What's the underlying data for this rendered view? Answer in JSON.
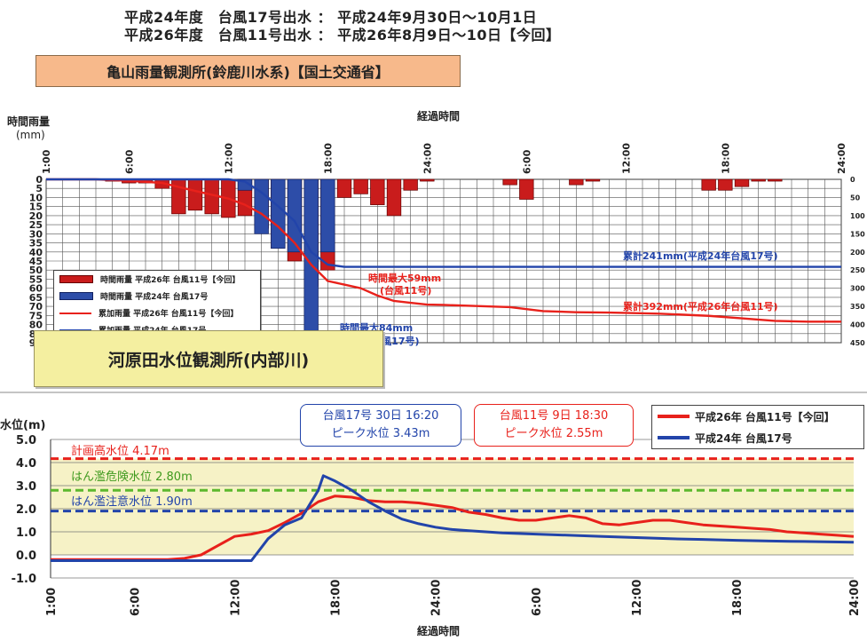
{
  "header": {
    "line1": "平成24年度　台風17号出水 ： 平成24年9月30日～10月1日",
    "line2": "平成26年度　台風11号出水 ： 平成26年8月9日～10日【今回】"
  },
  "station_rain": "亀山雨量観測所(鈴鹿川水系)【国土交通省】",
  "station_level": "河原田水位観測所(内部川)",
  "colors": {
    "red": "#e8211b",
    "darkred": "#d91c1c",
    "blue": "#2244aa",
    "bar_blue": "#2d4da8",
    "band": "#f6f2c6"
  },
  "chart_data": [
    {
      "type": "bar",
      "title": "",
      "xlabel": "経過時間",
      "ylabel": "時間雨量",
      "yunit": "(mm)",
      "ylim": [
        0,
        90
      ],
      "y2lim": [
        0,
        450
      ],
      "x_ticks": [
        "1:00",
        "6:00",
        "12:00",
        "18:00",
        "24:00",
        "6:00",
        "12:00",
        "18:00",
        "24:00"
      ],
      "y_ticks": [
        0,
        5,
        10,
        15,
        20,
        25,
        30,
        35,
        40,
        45,
        50,
        55,
        60,
        65,
        70,
        75,
        80,
        85,
        90
      ],
      "y2_ticks": [
        0,
        50,
        100,
        150,
        200,
        250,
        300,
        350,
        400,
        450
      ],
      "legend": [
        {
          "label": "時間雨量 平成26年 台風11号【今回】",
          "kind": "bar",
          "color": "#c91c1c"
        },
        {
          "label": "時間雨量 平成24年 台風17号",
          "kind": "bar",
          "color": "#2d4da8"
        },
        {
          "label": "累加雨量 平成26年 台風11号【今回】",
          "kind": "line",
          "color": "#e8211b"
        },
        {
          "label": "累加雨量 平成24年 台風17号",
          "kind": "line",
          "color": "#2244aa"
        }
      ],
      "series": [
        {
          "name": "時間雨量 平成26年 台風11号【今回】",
          "kind": "bar",
          "x": [
            5,
            6,
            7,
            8,
            9,
            10,
            11,
            12,
            13,
            14,
            15,
            16,
            17,
            18,
            19,
            20,
            21,
            22,
            23,
            24,
            29,
            30,
            33,
            34,
            41,
            42,
            43,
            44,
            45
          ],
          "values": [
            1,
            2,
            2,
            5,
            19,
            17,
            19,
            21,
            20,
            27,
            38,
            45,
            59,
            50,
            10,
            8,
            14,
            20,
            6,
            1,
            3,
            11,
            3,
            1,
            6,
            6,
            4,
            1,
            1
          ]
        },
        {
          "name": "時間雨量 平成24年 台風17号",
          "kind": "bar",
          "x": [
            13,
            14,
            15,
            16,
            17,
            18
          ],
          "values": [
            6,
            30,
            38,
            40,
            84,
            40
          ]
        },
        {
          "name": "累加雨量 平成26年 台風11号【今回】",
          "kind": "line",
          "x": [
            1,
            4,
            6,
            8,
            10,
            12,
            13,
            14,
            15,
            16,
            17,
            18,
            19,
            20,
            21,
            22,
            23,
            24,
            25,
            27,
            29,
            31,
            33,
            35,
            38,
            41,
            43,
            45,
            47,
            49
          ],
          "values": [
            0,
            0,
            4,
            10,
            32,
            53,
            70,
            95,
            130,
            175,
            235,
            280,
            290,
            300,
            320,
            335,
            340,
            345,
            346,
            349,
            352,
            363,
            366,
            367,
            370,
            376,
            383,
            390,
            392,
            392
          ]
        },
        {
          "name": "累加雨量 平成24年 台風17号",
          "kind": "line",
          "x": [
            1,
            12,
            13,
            14,
            15,
            16,
            17,
            18,
            19,
            20,
            49
          ],
          "values": [
            0,
            0,
            6,
            36,
            74,
            115,
            200,
            235,
            241,
            241,
            241
          ]
        }
      ],
      "annotations": [
        {
          "text": "時間最大59mm",
          "text2": "(台風11号)",
          "color": "#e8211b"
        },
        {
          "text": "時間最大84mm",
          "text2": "(平成24年 台風17号)",
          "color": "#2244aa"
        },
        {
          "text": "累計241mm(平成24年台風17号)",
          "color": "#2244aa"
        },
        {
          "text": "累計392mm(平成26年台風11号)",
          "color": "#e8211b"
        }
      ]
    },
    {
      "type": "line",
      "title": "",
      "xlabel": "経過時間",
      "ylabel": "水位(m)",
      "ylim": [
        -1.0,
        5.0
      ],
      "y_ticks": [
        "5.0",
        "4.0",
        "3.0",
        "2.0",
        "1.0",
        "0.0",
        "-1.0"
      ],
      "x_ticks": [
        "1:00",
        "6:00",
        "12:00",
        "18:00",
        "24:00",
        "6:00",
        "12:00",
        "18:00",
        "24:00"
      ],
      "reference_lines": [
        {
          "label": "計画高水位 4.17m",
          "value": 4.17,
          "color": "#e8211b"
        },
        {
          "label": "はん濫危険水位 2.80m",
          "value": 2.8,
          "color": "#5cb82e"
        },
        {
          "label": "はん濫注意水位 1.90m",
          "value": 1.9,
          "color": "#2244aa"
        }
      ],
      "callouts": [
        {
          "line1": "台風17号 30日 16:20",
          "line2": "ピーク水位 3.43m",
          "color": "#2244aa"
        },
        {
          "line1": "台風11号 9日 18:30",
          "line2": "ピーク水位 2.55m",
          "color": "#e8211b"
        }
      ],
      "legend": [
        {
          "label": "平成26年 台風11号【今回】",
          "color": "#e8211b"
        },
        {
          "label": "平成24年 台風17号",
          "color": "#2244aa"
        }
      ],
      "series": [
        {
          "name": "平成26年 台風11号【今回】",
          "x": [
            1,
            7,
            8,
            9,
            10,
            11,
            12,
            13,
            14,
            15,
            16,
            17,
            18,
            19,
            20,
            21,
            22,
            23,
            24,
            25,
            26,
            27,
            28,
            29,
            30,
            31,
            32,
            33,
            34,
            35,
            36,
            37,
            38,
            39,
            40,
            41,
            42,
            43,
            44,
            45,
            46,
            47,
            48,
            49
          ],
          "values": [
            -0.2,
            -0.2,
            -0.2,
            -0.15,
            0.0,
            0.4,
            0.8,
            0.9,
            1.05,
            1.4,
            1.8,
            2.3,
            2.55,
            2.5,
            2.35,
            2.3,
            2.3,
            2.25,
            2.15,
            2.05,
            1.85,
            1.75,
            1.6,
            1.5,
            1.5,
            1.6,
            1.7,
            1.6,
            1.35,
            1.3,
            1.4,
            1.5,
            1.5,
            1.4,
            1.3,
            1.25,
            1.2,
            1.15,
            1.1,
            1.0,
            0.95,
            0.9,
            0.85,
            0.8
          ]
        },
        {
          "name": "平成24年 台風17号",
          "x": [
            1,
            13,
            14,
            15,
            16,
            17,
            17.3,
            18,
            19,
            20,
            21,
            22,
            23,
            24,
            25,
            26,
            27,
            28,
            30,
            32,
            34,
            36,
            38,
            40,
            42,
            44,
            46,
            49
          ],
          "values": [
            -0.25,
            -0.25,
            0.7,
            1.3,
            1.6,
            2.8,
            3.43,
            3.2,
            2.8,
            2.3,
            1.9,
            1.55,
            1.35,
            1.2,
            1.1,
            1.05,
            1.0,
            0.95,
            0.9,
            0.85,
            0.8,
            0.75,
            0.7,
            0.67,
            0.63,
            0.6,
            0.58,
            0.55
          ]
        }
      ]
    }
  ]
}
